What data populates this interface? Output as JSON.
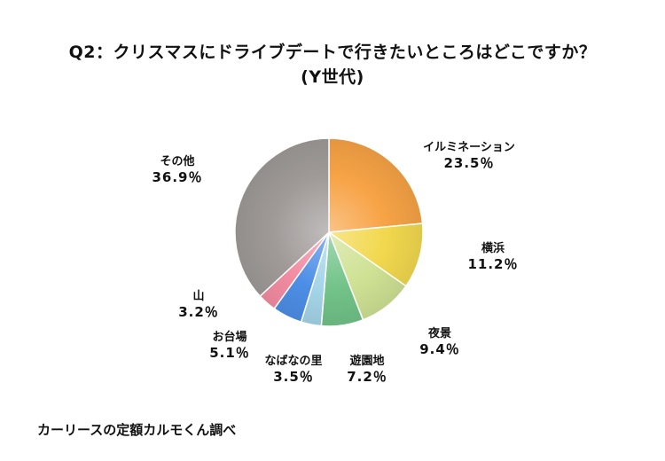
{
  "title_line1": "Q2：クリスマスにドライブデートで行きたいところはどこですか？",
  "title_line2": "(Y世代)",
  "source": "カーリースの定額カルモくん調べ",
  "chart_data": {
    "type": "pie",
    "title": "Q2：クリスマスにドライブデートで行きたいところはどこですか？ (Y世代)",
    "unit": "%",
    "start_angle_deg": 0,
    "direction": "clockwise",
    "slices": [
      {
        "label": "イルミネーション",
        "value": 23.5,
        "display": "23.5％",
        "color": "#f7a346"
      },
      {
        "label": "横浜",
        "value": 11.2,
        "display": "11.2％",
        "color": "#f2d84e"
      },
      {
        "label": "夜景",
        "value": 9.4,
        "display": "9.4％",
        "color": "#cfe294"
      },
      {
        "label": "遊園地",
        "value": 7.2,
        "display": "7.2％",
        "color": "#72c389"
      },
      {
        "label": "なばなの里",
        "value": 3.5,
        "display": "3.5％",
        "color": "#a4d5e8"
      },
      {
        "label": "お台場",
        "value": 5.1,
        "display": "5.1％",
        "color": "#4d8ee6"
      },
      {
        "label": "山",
        "value": 3.2,
        "display": "3.2％",
        "color": "#f38ca3"
      },
      {
        "label": "その他",
        "value": 36.9,
        "display": "36.9％",
        "color": "#9f9a98"
      }
    ]
  }
}
